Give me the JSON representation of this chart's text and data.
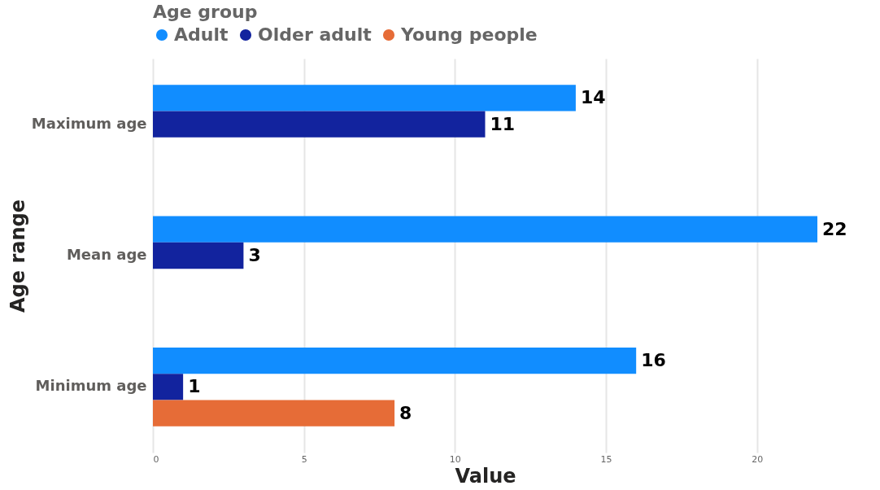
{
  "chart_data": {
    "type": "bar",
    "orientation": "horizontal",
    "xlabel": "Value",
    "ylabel": "Age range",
    "legend_title": "Age group",
    "legend": "top",
    "grid": "x",
    "data_labels": true,
    "categories": [
      "Maximum age",
      "Mean age",
      "Minimum age"
    ],
    "series": [
      {
        "name": "Adult",
        "color": "#118dff",
        "values": [
          14,
          22,
          16
        ]
      },
      {
        "name": "Older adult",
        "color": "#12239e",
        "values": [
          11,
          3,
          1
        ]
      },
      {
        "name": "Young people",
        "color": "#e66c37",
        "values": [
          null,
          null,
          8
        ]
      }
    ],
    "xlim": [
      0,
      22
    ],
    "xticks": [
      0,
      5,
      10,
      15,
      20
    ]
  }
}
